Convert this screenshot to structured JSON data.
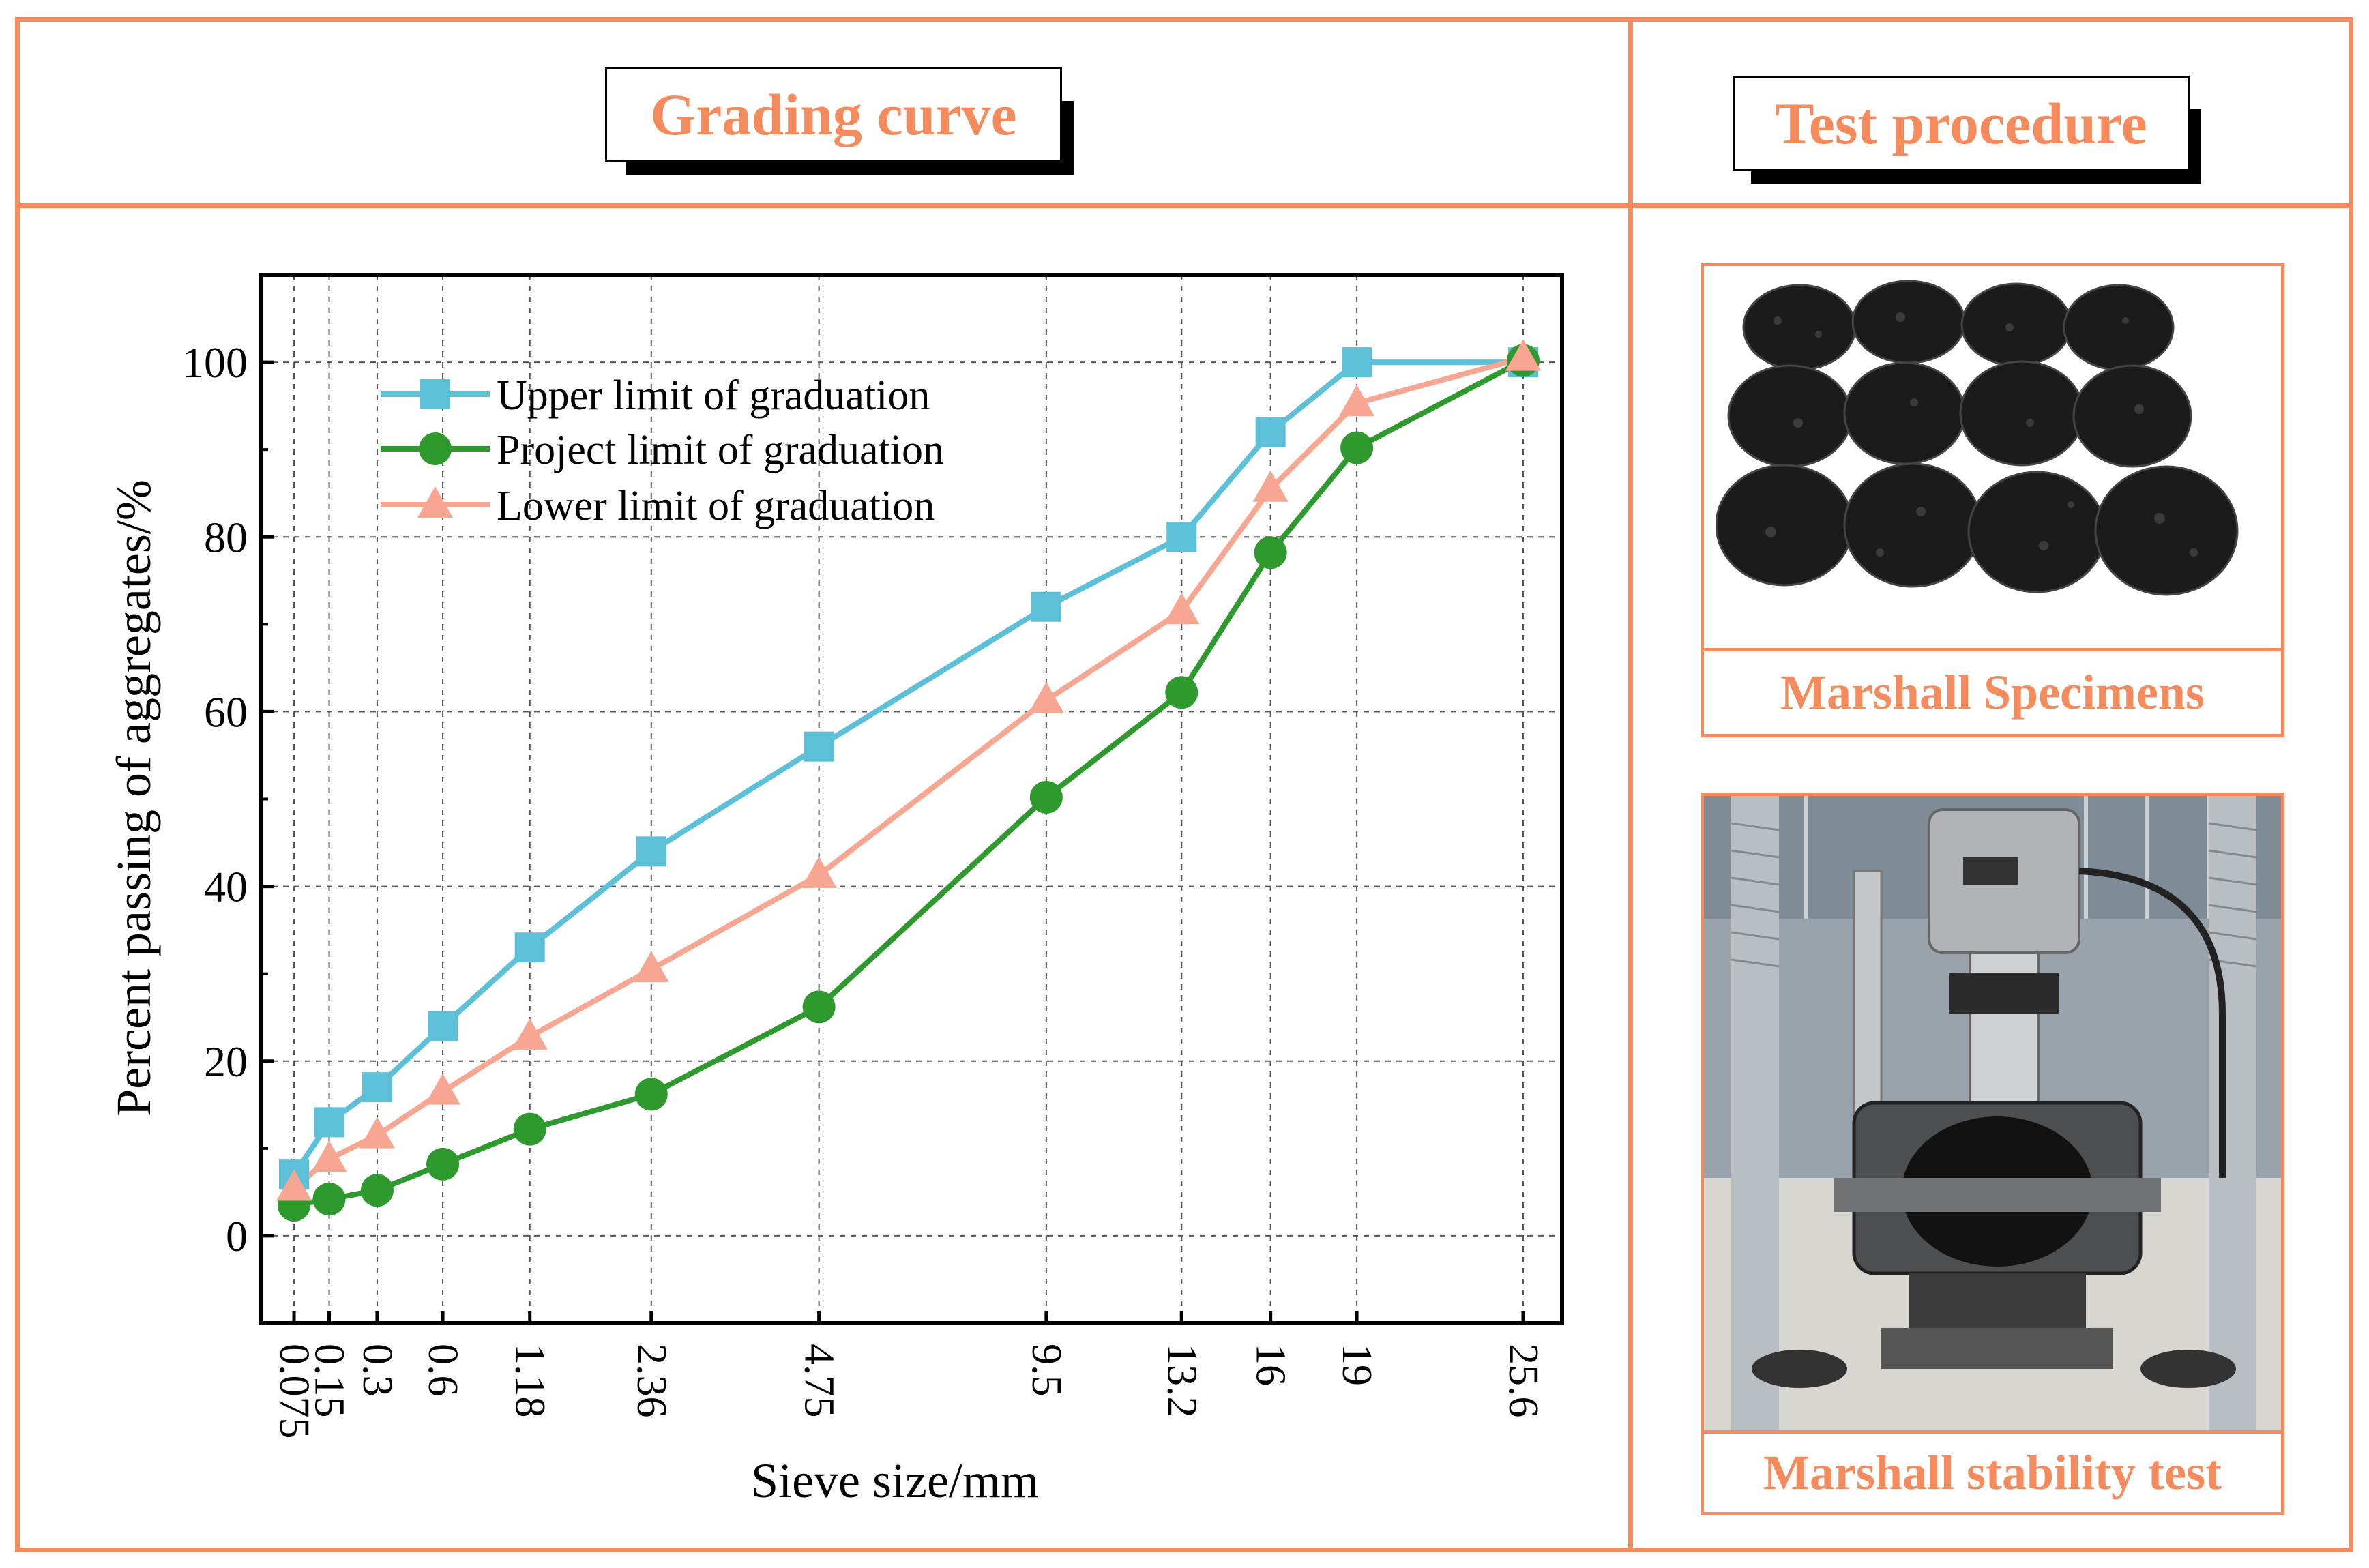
{
  "panels": {
    "left_title": "Grading curve",
    "right_title": "Test procedure"
  },
  "photos": {
    "specimens_caption": "Marshall Specimens",
    "stability_caption": "Marshall stability test"
  },
  "colors": {
    "frame": "#f58b5c",
    "upper": "#5bc0d8",
    "project": "#2e9a2e",
    "lower": "#f7a691"
  },
  "chart_data": {
    "type": "line",
    "title": "",
    "xlabel": "Sieve size/mm",
    "ylabel": "Percent passing of aggregates/%",
    "ylim": [
      -10,
      110
    ],
    "yticks": [
      0,
      20,
      40,
      60,
      80,
      100
    ],
    "categories": [
      "0.075",
      "0.15",
      "0.3",
      "0.6",
      "1.18",
      "2.36",
      "4.75",
      "9.5",
      "13.2",
      "16",
      "19",
      "25.6"
    ],
    "x": [
      0.075,
      0.15,
      0.3,
      0.6,
      1.18,
      2.36,
      4.75,
      9.5,
      13.2,
      16,
      19,
      25.6
    ],
    "x_scale": "power 0.45",
    "grid": true,
    "legend_position": "top-left",
    "series": [
      {
        "name": "Upper limit of graduation",
        "marker": "square",
        "color": "#5bc0d8",
        "values": [
          7,
          13,
          17,
          24,
          33,
          44,
          56,
          72,
          80,
          92,
          100,
          100
        ]
      },
      {
        "name": "Project limit of graduation",
        "marker": "circle",
        "color": "#2e9a2e",
        "values": [
          3.5,
          4.2,
          5.2,
          8.2,
          12.2,
          16.2,
          26.2,
          50.2,
          62.2,
          78.2,
          90.2,
          100.2
        ]
      },
      {
        "name": "Lower limit of graduation",
        "marker": "triangle",
        "color": "#f7a691",
        "values": [
          5.5,
          8.8,
          11.5,
          16.5,
          22.8,
          30.5,
          41.3,
          61.3,
          71.5,
          85.5,
          95.3,
          100.5
        ]
      }
    ]
  }
}
